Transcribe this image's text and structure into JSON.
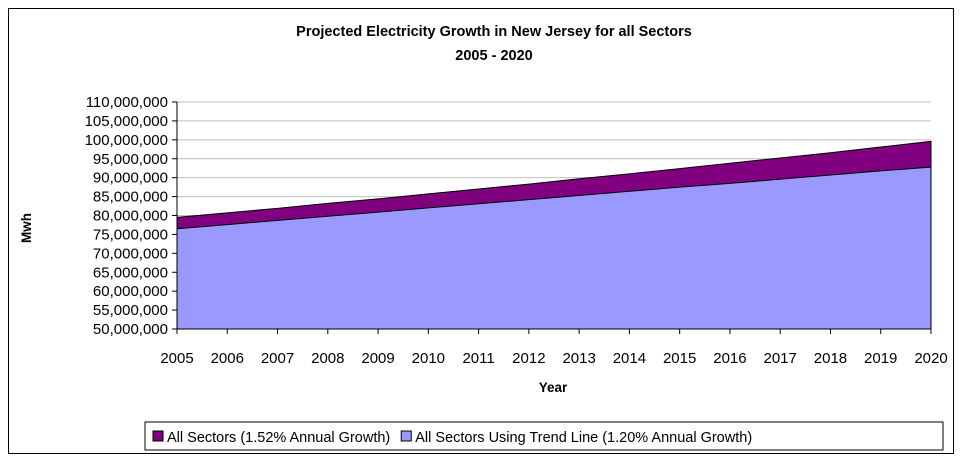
{
  "chart_data": {
    "type": "area",
    "title": "Projected Electricity Growth in New Jersey for all Sectors",
    "subtitle": "2005 - 2020",
    "xlabel": "Year",
    "ylabel": "Mwh",
    "x": [
      "2005",
      "2006",
      "2007",
      "2008",
      "2009",
      "2010",
      "2011",
      "2012",
      "2013",
      "2014",
      "2015",
      "2016",
      "2017",
      "2018",
      "2019",
      "2020"
    ],
    "ylim": [
      50000000,
      110000000
    ],
    "ytick_labels": [
      "50,000,000",
      "55,000,000",
      "60,000,000",
      "65,000,000",
      "70,000,000",
      "75,000,000",
      "80,000,000",
      "85,000,000",
      "90,000,000",
      "95,000,000",
      "100,000,000",
      "105,000,000",
      "110,000,000"
    ],
    "grid": true,
    "legend_position": "bottom",
    "series": [
      {
        "name": "All Sectors (1.52% Annual Growth)",
        "color": "#800080",
        "values": [
          79500000,
          80700000,
          81900000,
          83200000,
          84400000,
          85700000,
          87000000,
          88300000,
          89700000,
          91000000,
          92400000,
          93800000,
          95200000,
          96600000,
          98100000,
          99600000
        ]
      },
      {
        "name": "All Sectors Using Trend Line (1.20% Annual Growth)",
        "color": "#9999ff",
        "values": [
          76500000,
          77600000,
          78700000,
          79800000,
          80900000,
          82000000,
          83100000,
          84200000,
          85300000,
          86400000,
          87500000,
          88500000,
          89600000,
          90700000,
          91800000,
          92800000
        ]
      }
    ]
  }
}
